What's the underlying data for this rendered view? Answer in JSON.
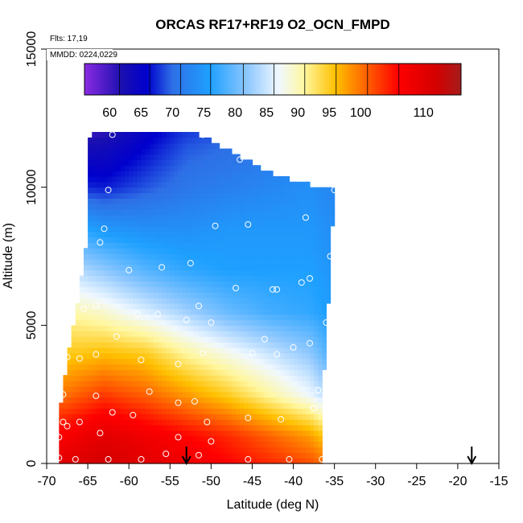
{
  "chart_data": {
    "type": "heatmap",
    "title": "ORCAS RF17+RF19 O2_OCN_FMPD",
    "annotations": [
      "Flts: 17,19",
      "MMDD: 0224,0229"
    ],
    "xlabel": "Latitude (deg N)",
    "ylabel": "Altitude (m)",
    "xlim": [
      -70,
      -15
    ],
    "ylim": [
      0,
      15000
    ],
    "xticks": [
      "-70",
      "-65",
      "-60",
      "-55",
      "-50",
      "-45",
      "-40",
      "-35",
      "-30",
      "-25",
      "-20",
      "-15"
    ],
    "yticks": [
      "0",
      "5000",
      "10000",
      "15000"
    ],
    "colorbar": {
      "range": [
        56,
        116
      ],
      "ticks": [
        "60",
        "65",
        "70",
        "75",
        "80",
        "85",
        "90",
        "95",
        "100",
        "110"
      ],
      "stops": [
        {
          "v": 56,
          "c": "#8a2be2"
        },
        {
          "v": 62,
          "c": "#1a0fb0"
        },
        {
          "v": 66,
          "c": "#0000cd"
        },
        {
          "v": 70,
          "c": "#2e6fe6"
        },
        {
          "v": 76,
          "c": "#1ea0ff"
        },
        {
          "v": 82,
          "c": "#8fc8ff"
        },
        {
          "v": 87,
          "c": "#f0f8ff"
        },
        {
          "v": 91,
          "c": "#fff7a0"
        },
        {
          "v": 96,
          "c": "#ffc000"
        },
        {
          "v": 101,
          "c": "#ff6000"
        },
        {
          "v": 106,
          "c": "#ff0000"
        },
        {
          "v": 112,
          "c": "#d40000"
        },
        {
          "v": 116,
          "c": "#a51c1c"
        }
      ]
    },
    "field_profile": {
      "latitudes": [
        -68,
        -63,
        -58,
        -53,
        -48,
        -43,
        -38,
        -36
      ],
      "altitudes": [
        0,
        1000,
        2500,
        4000,
        5500,
        7000,
        8500,
        10000,
        11500,
        12000
      ],
      "values": [
        [
          110,
          112,
          110,
          108,
          106,
          104,
          102,
          100
        ],
        [
          107,
          110,
          108,
          106,
          104,
          101,
          98,
          95
        ],
        [
          100,
          103,
          101,
          98,
          95,
          91,
          87,
          84
        ],
        [
          95,
          96,
          95,
          91,
          88,
          85,
          82,
          79
        ],
        [
          91,
          89,
          86,
          83,
          80,
          78,
          77,
          76
        ],
        [
          85,
          82,
          79,
          77,
          76,
          76,
          76,
          75
        ],
        [
          78,
          75,
          74,
          74,
          75,
          75,
          75,
          74
        ],
        [
          68,
          67,
          69,
          71,
          72,
          73,
          74,
          73
        ],
        [
          62,
          63,
          66,
          69,
          70,
          71,
          72,
          72
        ],
        [
          59,
          61,
          65,
          68,
          69,
          70,
          71,
          71
        ]
      ],
      "top_altitude_m": [
        [
          -68,
          8300
        ],
        [
          -66,
          11000
        ],
        [
          -64.5,
          12000
        ],
        [
          -52,
          12000
        ],
        [
          -47,
          11200
        ],
        [
          -42,
          10400
        ],
        [
          -36,
          9950
        ],
        [
          -35,
          9950
        ]
      ],
      "bottom_altitude_m": [
        [
          -68.5,
          0
        ],
        [
          -35.5,
          0
        ]
      ],
      "left_edge": [
        [
          -68.7,
          0
        ],
        [
          -68.5,
          1500
        ],
        [
          -67.8,
          3000
        ],
        [
          -67,
          4500
        ],
        [
          -66,
          6000
        ],
        [
          -65.5,
          7200
        ],
        [
          -65,
          8300
        ]
      ],
      "right_edge": [
        [
          -36.5,
          0
        ],
        [
          -36.5,
          2000
        ],
        [
          -36,
          4500
        ],
        [
          -35.5,
          7000
        ],
        [
          -35,
          9950
        ]
      ]
    },
    "observations": [
      {
        "lat": -62.0,
        "alt": 11900
      },
      {
        "lat": -51.0,
        "alt": 11900
      },
      {
        "lat": -46.5,
        "alt": 11000
      },
      {
        "lat": -42.5,
        "alt": 10800
      },
      {
        "lat": -62.5,
        "alt": 9900
      },
      {
        "lat": -35.0,
        "alt": 9900
      },
      {
        "lat": -38.5,
        "alt": 8900
      },
      {
        "lat": -49.5,
        "alt": 8600
      },
      {
        "lat": -45.5,
        "alt": 8650
      },
      {
        "lat": -63.0,
        "alt": 8500
      },
      {
        "lat": -63.5,
        "alt": 8000
      },
      {
        "lat": -35.5,
        "alt": 7500
      },
      {
        "lat": -52.5,
        "alt": 7250
      },
      {
        "lat": -56.0,
        "alt": 7100
      },
      {
        "lat": -60.0,
        "alt": 7000
      },
      {
        "lat": -38.0,
        "alt": 6700
      },
      {
        "lat": -39.0,
        "alt": 6550
      },
      {
        "lat": -47.0,
        "alt": 6350
      },
      {
        "lat": -42.5,
        "alt": 6300
      },
      {
        "lat": -42.0,
        "alt": 6300
      },
      {
        "lat": -51.5,
        "alt": 5700
      },
      {
        "lat": -64.0,
        "alt": 5700
      },
      {
        "lat": -65.5,
        "alt": 5600
      },
      {
        "lat": -59.0,
        "alt": 5400
      },
      {
        "lat": -56.5,
        "alt": 5400
      },
      {
        "lat": -53.0,
        "alt": 5200
      },
      {
        "lat": -50.0,
        "alt": 5100
      },
      {
        "lat": -36.0,
        "alt": 5100
      },
      {
        "lat": -61.5,
        "alt": 4600
      },
      {
        "lat": -43.5,
        "alt": 4500
      },
      {
        "lat": -38.0,
        "alt": 4350
      },
      {
        "lat": -40.0,
        "alt": 4200
      },
      {
        "lat": -51.0,
        "alt": 4000
      },
      {
        "lat": -45.0,
        "alt": 4000
      },
      {
        "lat": -42.0,
        "alt": 3950
      },
      {
        "lat": -64.0,
        "alt": 3950
      },
      {
        "lat": -58.5,
        "alt": 3750
      },
      {
        "lat": -67.5,
        "alt": 3850
      },
      {
        "lat": -66.0,
        "alt": 3800
      },
      {
        "lat": -54.0,
        "alt": 3600
      },
      {
        "lat": -37.0,
        "alt": 2650
      },
      {
        "lat": -57.5,
        "alt": 2600
      },
      {
        "lat": -68.0,
        "alt": 2500
      },
      {
        "lat": -64.0,
        "alt": 2450
      },
      {
        "lat": -52.0,
        "alt": 2250
      },
      {
        "lat": -54.0,
        "alt": 2200
      },
      {
        "lat": -37.5,
        "alt": 2000
      },
      {
        "lat": -62.0,
        "alt": 1850
      },
      {
        "lat": -59.5,
        "alt": 1750
      },
      {
        "lat": -45.5,
        "alt": 1650
      },
      {
        "lat": -41.5,
        "alt": 1600
      },
      {
        "lat": -68.0,
        "alt": 1500
      },
      {
        "lat": -66.0,
        "alt": 1500
      },
      {
        "lat": -50.5,
        "alt": 1500
      },
      {
        "lat": -67.5,
        "alt": 1350
      },
      {
        "lat": -63.5,
        "alt": 1100
      },
      {
        "lat": -68.5,
        "alt": 950
      },
      {
        "lat": -54.0,
        "alt": 950
      },
      {
        "lat": -50.0,
        "alt": 800
      },
      {
        "lat": -55.5,
        "alt": 350
      },
      {
        "lat": -51.5,
        "alt": 300
      },
      {
        "lat": -68.5,
        "alt": 200
      },
      {
        "lat": -66.5,
        "alt": 150
      },
      {
        "lat": -62.5,
        "alt": 150
      },
      {
        "lat": -58.5,
        "alt": 150
      },
      {
        "lat": -45.5,
        "alt": 150
      },
      {
        "lat": -40.5,
        "alt": 150
      },
      {
        "lat": -36.5,
        "alt": 150
      }
    ],
    "arrows_lat": [
      -53,
      -18.3
    ]
  }
}
